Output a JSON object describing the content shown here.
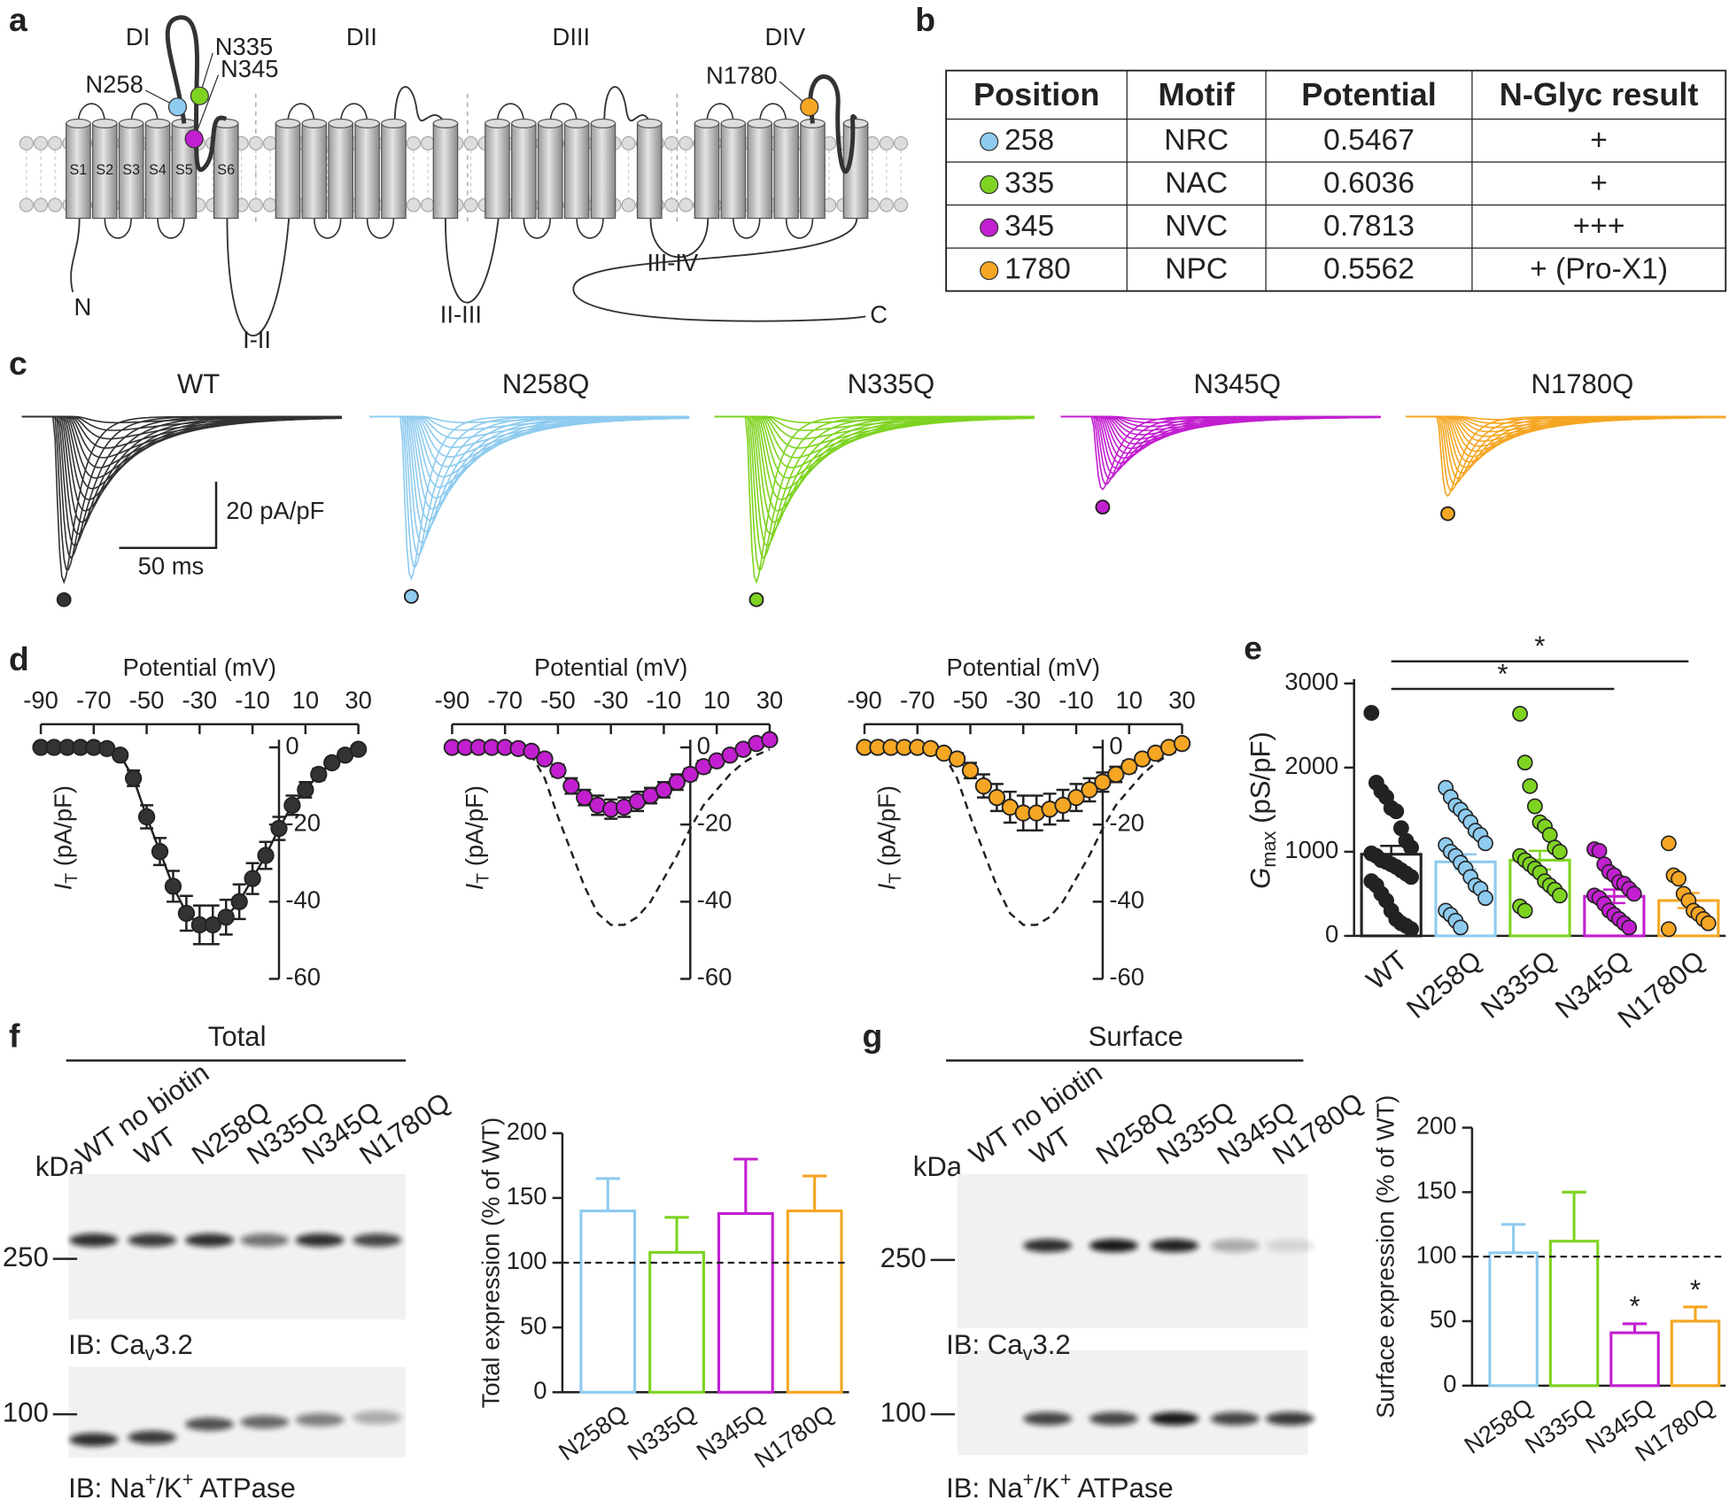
{
  "panel_labels": [
    "a",
    "b",
    "c",
    "d",
    "e",
    "f",
    "g"
  ],
  "topology": {
    "domains": [
      "DI",
      "DII",
      "DIII",
      "DIV"
    ],
    "segments": [
      "S1",
      "S2",
      "S3",
      "S4",
      "S5",
      "S6"
    ],
    "sites": [
      {
        "label": "N258",
        "color": "#8ecbef"
      },
      {
        "label": "N335",
        "color": "#7ed321"
      },
      {
        "label": "N345",
        "color": "#c21fd0"
      },
      {
        "label": "N1780",
        "color": "#f5a623"
      }
    ],
    "loops": [
      "N",
      "I-II",
      "II-III",
      "III-IV",
      "C"
    ]
  },
  "table": {
    "header": [
      "Position",
      "Motif",
      "Potential",
      "N-Glyc result"
    ],
    "rows": [
      [
        "258",
        "NRC",
        "0.5467",
        "+"
      ],
      [
        "335",
        "NAC",
        "0.6036",
        "+"
      ],
      [
        "345",
        "NVC",
        "0.7813",
        "+++"
      ],
      [
        "1780",
        "NPC",
        "0.5562",
        "+ (Pro-X1)"
      ]
    ],
    "row_colors": [
      "#8ecbef",
      "#7ed321",
      "#c21fd0",
      "#f5a623"
    ]
  },
  "traces": {
    "titles": [
      "WT",
      "N258Q",
      "N335Q",
      "N345Q",
      "N1780Q"
    ],
    "colors": [
      "#333333",
      "#8ecbef",
      "#7ed321",
      "#c21fd0",
      "#f5a623"
    ],
    "peak_current": [
      50,
      49,
      50,
      22,
      24
    ],
    "scale_y": "20 pA/pF",
    "scale_x": "50 ms"
  },
  "chart_data": [
    {
      "type": "line",
      "xlabel": "Potential (mV)",
      "ylabel": [
        "I",
        "T",
        " (pA/pF)"
      ],
      "color": "#333333",
      "x": [
        -90,
        -85,
        -80,
        -75,
        -70,
        -65,
        -60,
        -55,
        -50,
        -45,
        -40,
        -35,
        -30,
        -25,
        -20,
        -15,
        -10,
        -5,
        0,
        5,
        10,
        15,
        20,
        25,
        30
      ],
      "values": [
        0,
        0,
        0,
        0,
        0,
        -0.3,
        -2,
        -8,
        -18,
        -27,
        -36,
        -43,
        -46,
        -46,
        -44,
        -40,
        -34,
        -28,
        -21,
        -15,
        -11,
        -7,
        -4,
        -2,
        -0.5
      ],
      "errors": [
        0.3,
        0.3,
        0.3,
        0.3,
        0.3,
        0.5,
        1,
        2,
        3,
        3.5,
        4,
        4.5,
        5,
        5,
        4.5,
        4.5,
        4,
        3.5,
        3,
        2.5,
        2,
        1.5,
        1.2,
        1,
        0.8
      ],
      "xlim": [
        -90,
        30
      ],
      "ylim": [
        -60,
        6
      ],
      "xticks": [
        -90,
        -70,
        -50,
        -30,
        -10,
        10,
        30
      ],
      "yticks": [
        0,
        -20,
        -40,
        -60
      ]
    },
    {
      "type": "line",
      "xlabel": "Potential (mV)",
      "ylabel": [
        "I",
        "T",
        " (pA/pF)"
      ],
      "color": "#c21fd0",
      "dashed_reference": true,
      "x": [
        -90,
        -85,
        -80,
        -75,
        -70,
        -65,
        -60,
        -55,
        -50,
        -45,
        -40,
        -35,
        -30,
        -25,
        -20,
        -15,
        -10,
        -5,
        0,
        5,
        10,
        15,
        20,
        25,
        30
      ],
      "values": [
        0,
        0,
        0,
        0,
        0,
        -0.3,
        -1,
        -3,
        -6,
        -10,
        -13,
        -15,
        -16,
        -15.5,
        -14,
        -12.5,
        -11,
        -9,
        -7,
        -5,
        -3.5,
        -2,
        -0.5,
        1,
        2
      ],
      "errors": [
        0.3,
        0.3,
        0.3,
        0.3,
        0.3,
        0.3,
        0.5,
        1,
        1.5,
        2,
        2,
        2.5,
        2.5,
        2.5,
        2.5,
        2,
        2,
        2,
        1.5,
        1.5,
        1.2,
        1,
        1,
        0.8,
        0.8
      ],
      "xlim": [
        -90,
        30
      ],
      "ylim": [
        -60,
        6
      ],
      "xticks": [
        -90,
        -70,
        -50,
        -30,
        -10,
        10,
        30
      ],
      "yticks": [
        0,
        -20,
        -40,
        -60
      ]
    },
    {
      "type": "line",
      "xlabel": "Potential (mV)",
      "ylabel": [
        "I",
        "T",
        " (pA/pF)"
      ],
      "color": "#f5a623",
      "dashed_reference": true,
      "x": [
        -90,
        -85,
        -80,
        -75,
        -70,
        -65,
        -60,
        -55,
        -50,
        -45,
        -40,
        -35,
        -30,
        -25,
        -20,
        -15,
        -10,
        -5,
        0,
        5,
        10,
        15,
        20,
        25,
        30
      ],
      "values": [
        0,
        0,
        0,
        0,
        0,
        -0.3,
        -1.5,
        -3,
        -6,
        -10,
        -13,
        -15.5,
        -17,
        -17,
        -16,
        -15,
        -13,
        -11,
        -9,
        -7,
        -5,
        -3,
        -1.5,
        0,
        1
      ],
      "errors": [
        0.3,
        0.3,
        0.3,
        0.3,
        0.3,
        0.5,
        0.8,
        1.5,
        2,
        3,
        3.5,
        4,
        4.5,
        4.5,
        4,
        4,
        3.5,
        3,
        2.5,
        2,
        1.5,
        1.2,
        1,
        0.8,
        0.6
      ],
      "xlim": [
        -90,
        30
      ],
      "ylim": [
        -60,
        6
      ],
      "xticks": [
        -90,
        -70,
        -50,
        -30,
        -10,
        10,
        30
      ],
      "yticks": [
        0,
        -20,
        -40,
        -60
      ]
    },
    {
      "type": "dotbar",
      "ylabel": [
        "G",
        "max",
        " (pS/pF)"
      ],
      "categories": [
        "WT",
        "N258Q",
        "N335Q",
        "N345Q",
        "N1780Q"
      ],
      "colors": [
        "#222222",
        "#8ecbef",
        "#7ed321",
        "#c21fd0",
        "#f5a623"
      ],
      "values": [
        970,
        880,
        900,
        470,
        420
      ],
      "errors": [
        100,
        90,
        110,
        80,
        90
      ],
      "points": [
        [
          2650,
          1820,
          1720,
          1650,
          1520,
          1480,
          1280,
          1130,
          1050,
          980,
          950,
          900,
          880,
          850,
          820,
          780,
          740,
          700,
          650,
          600,
          500,
          420,
          300,
          200,
          150,
          120,
          80
        ],
        [
          1760,
          1650,
          1550,
          1500,
          1420,
          1350,
          1250,
          1200,
          1100,
          1080,
          1000,
          950,
          870,
          800,
          700,
          600,
          560,
          450,
          300,
          250,
          180,
          100
        ],
        [
          2640,
          2060,
          1780,
          1540,
          1350,
          1300,
          1200,
          1050,
          1000,
          950,
          900,
          850,
          800,
          750,
          650,
          600,
          550,
          480,
          350,
          300
        ],
        [
          1030,
          1010,
          850,
          760,
          720,
          640,
          620,
          560,
          500,
          480,
          450,
          380,
          300,
          250,
          200,
          150,
          100
        ],
        [
          1100,
          720,
          680,
          500,
          420,
          300,
          260,
          200,
          150,
          80
        ]
      ],
      "ylim": [
        0,
        3000
      ],
      "yticks": [
        0,
        1000,
        2000,
        3000
      ],
      "significance": [
        "*",
        "*"
      ]
    },
    {
      "type": "bar",
      "ylabel": "Total expression (% of WT)",
      "categories": [
        "N258Q",
        "N335Q",
        "N345Q",
        "N1780Q"
      ],
      "colors": [
        "#8ecbef",
        "#7ed321",
        "#c21fd0",
        "#f5a623"
      ],
      "values": [
        140,
        108,
        138,
        140
      ],
      "errors": [
        25,
        27,
        42,
        27
      ],
      "ylim": [
        0,
        200
      ],
      "yticks": [
        0,
        50,
        100,
        150,
        200
      ],
      "reference_line": 100
    },
    {
      "type": "bar",
      "ylabel": "Surface expression (% of WT)",
      "categories": [
        "N258Q",
        "N335Q",
        "N345Q",
        "N1780Q"
      ],
      "colors": [
        "#8ecbef",
        "#7ed321",
        "#c21fd0",
        "#f5a623"
      ],
      "values": [
        103,
        112,
        41,
        50
      ],
      "errors": [
        22,
        38,
        7,
        11
      ],
      "annotations": [
        null,
        null,
        "*",
        "*"
      ],
      "ylim": [
        0,
        200
      ],
      "yticks": [
        0,
        50,
        100,
        150,
        200
      ],
      "reference_line": 100
    }
  ],
  "blots": [
    {
      "header": "Total",
      "lanes": [
        "WT no biotin",
        "WT",
        "N258Q",
        "N335Q",
        "N345Q",
        "N1780Q"
      ],
      "unit": "kDa",
      "markers": [
        "250",
        "100"
      ],
      "labels": [
        [
          "IB: Ca",
          "v",
          "3.2"
        ],
        [
          "IB: Na",
          "+",
          "/K",
          "+",
          " ATPase"
        ]
      ],
      "bands": [
        [
          0.85,
          0.8,
          0.85,
          0.55,
          0.85,
          0.75
        ],
        [
          0.85,
          0.8,
          0.7,
          0.6,
          0.5,
          0.3
        ]
      ]
    },
    {
      "header": "Surface",
      "lanes": [
        "WT no biotin",
        "WT",
        "N258Q",
        "N335Q",
        "N345Q",
        "N1780Q"
      ],
      "unit": "kDa",
      "markers": [
        "250",
        "100"
      ],
      "labels": [
        [
          "IB: Ca",
          "v",
          "3.2"
        ],
        [
          "IB: Na",
          "+",
          "/K",
          "+",
          " ATPase"
        ]
      ],
      "bands": [
        [
          0,
          0.85,
          0.95,
          0.9,
          0.3,
          0.12
        ],
        [
          0,
          0.75,
          0.75,
          0.95,
          0.75,
          0.8
        ]
      ]
    }
  ]
}
